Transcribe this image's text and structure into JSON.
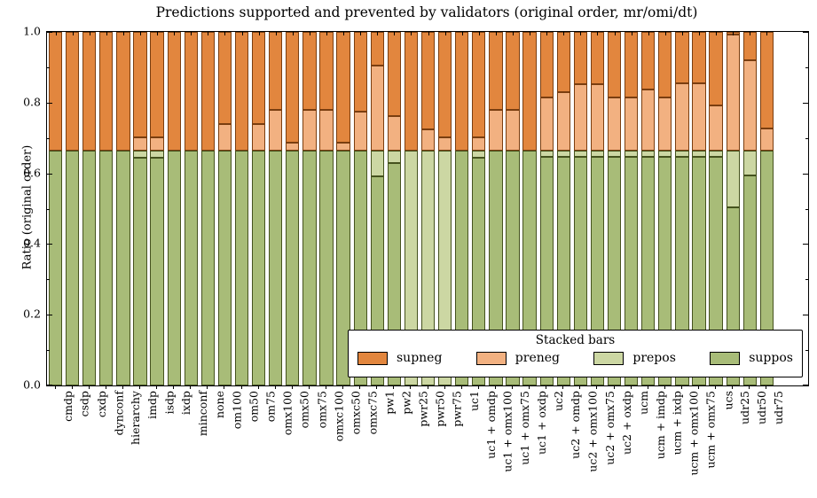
{
  "chart_data": {
    "type": "bar",
    "stacked": true,
    "title": "Predictions supported and prevented by validators (original order, mr/omi/dt)",
    "xlabel": "",
    "ylabel": "Ratio (original order)",
    "ylim": [
      0.0,
      1.0
    ],
    "yticks": [
      0.0,
      0.2,
      0.4,
      0.6,
      0.8,
      1.0
    ],
    "ytick_labels": [
      "0.0",
      "0.2",
      "0.4",
      "0.6",
      "0.8",
      "1.0"
    ],
    "grid": false,
    "legend": {
      "title": "Stacked bars",
      "position": "lower right",
      "entries": [
        "supneg",
        "preneg",
        "prepos",
        "suppos"
      ]
    },
    "colors": {
      "supneg": "#e2863e",
      "preneg": "#f2b181",
      "prepos": "#ccd7a3",
      "suppos": "#a8bc78",
      "supneg_edge": "#7a3e10",
      "preneg_edge": "#7a3e10",
      "prepos_edge": "#45521e",
      "suppos_edge": "#45521e",
      "axis": "#000000"
    },
    "categories": [
      "cmdp",
      "csdp",
      "cxdp",
      "dynconf",
      "hierarchy",
      "imdp",
      "isdp",
      "ixdp",
      "minconf",
      "none",
      "om100",
      "om50",
      "om75",
      "omx100",
      "omx50",
      "omx75",
      "omxc100",
      "omxc50",
      "omxc75",
      "pw1",
      "pw2",
      "pwr25",
      "pwr50",
      "pwr75",
      "uc1",
      "uc1 + omdp",
      "uc1 + omx100",
      "uc1 + omx75",
      "uc1 + oxdp",
      "uc2",
      "uc2 + omdp",
      "uc2 + omx100",
      "uc2 + omx75",
      "uc2 + oxdp",
      "ucm",
      "ucm + imdp",
      "ucm + ixdp",
      "ucm + omx100",
      "ucm + omx75",
      "ucs",
      "udr25",
      "udr50",
      "udr75"
    ],
    "series": [
      {
        "name": "suppos",
        "values": [
          0.665,
          0.665,
          0.665,
          0.665,
          0.665,
          0.643,
          0.643,
          0.665,
          0.665,
          0.665,
          0.665,
          0.665,
          0.665,
          0.665,
          0.665,
          0.665,
          0.665,
          0.665,
          0.665,
          0.591,
          0.628,
          0.0,
          0.0,
          0.0,
          0.665,
          0.643,
          0.665,
          0.665,
          0.665,
          0.647,
          0.647,
          0.647,
          0.647,
          0.647,
          0.647,
          0.647,
          0.647,
          0.647,
          0.647,
          0.647,
          0.503,
          0.593,
          0.665
        ]
      },
      {
        "name": "prepos",
        "values": [
          0,
          0,
          0,
          0,
          0,
          0.022,
          0.022,
          0,
          0,
          0,
          0,
          0,
          0,
          0,
          0,
          0,
          0,
          0,
          0,
          0.074,
          0.037,
          0.665,
          0.665,
          0.665,
          0,
          0.022,
          0,
          0,
          0,
          0.018,
          0.018,
          0.018,
          0.018,
          0.018,
          0.018,
          0.018,
          0.018,
          0.018,
          0.018,
          0.018,
          0.162,
          0.072,
          0
        ]
      },
      {
        "name": "preneg",
        "values": [
          0,
          0,
          0,
          0,
          0,
          0.038,
          0.038,
          0,
          0,
          0,
          0.075,
          0,
          0.075,
          0.114,
          0.022,
          0.114,
          0.114,
          0.022,
          0.11,
          0.241,
          0.097,
          0,
          0.059,
          0.038,
          0,
          0.038,
          0.114,
          0.114,
          0,
          0.149,
          0.164,
          0.186,
          0.186,
          0.149,
          0.149,
          0.172,
          0.149,
          0.189,
          0.189,
          0.128,
          0.327,
          0.256,
          0.061
        ]
      },
      {
        "name": "supneg",
        "values": [
          0.335,
          0.335,
          0.335,
          0.335,
          0.335,
          0.297,
          0.297,
          0.335,
          0.335,
          0.335,
          0.26,
          0.335,
          0.26,
          0.221,
          0.313,
          0.221,
          0.221,
          0.313,
          0.225,
          0.094,
          0.238,
          0.335,
          0.276,
          0.297,
          0.335,
          0.297,
          0.221,
          0.221,
          0.335,
          0.186,
          0.171,
          0.149,
          0.149,
          0.186,
          0.186,
          0.163,
          0.186,
          0.146,
          0.146,
          0.207,
          0.008,
          0.079,
          0.274
        ]
      }
    ]
  }
}
